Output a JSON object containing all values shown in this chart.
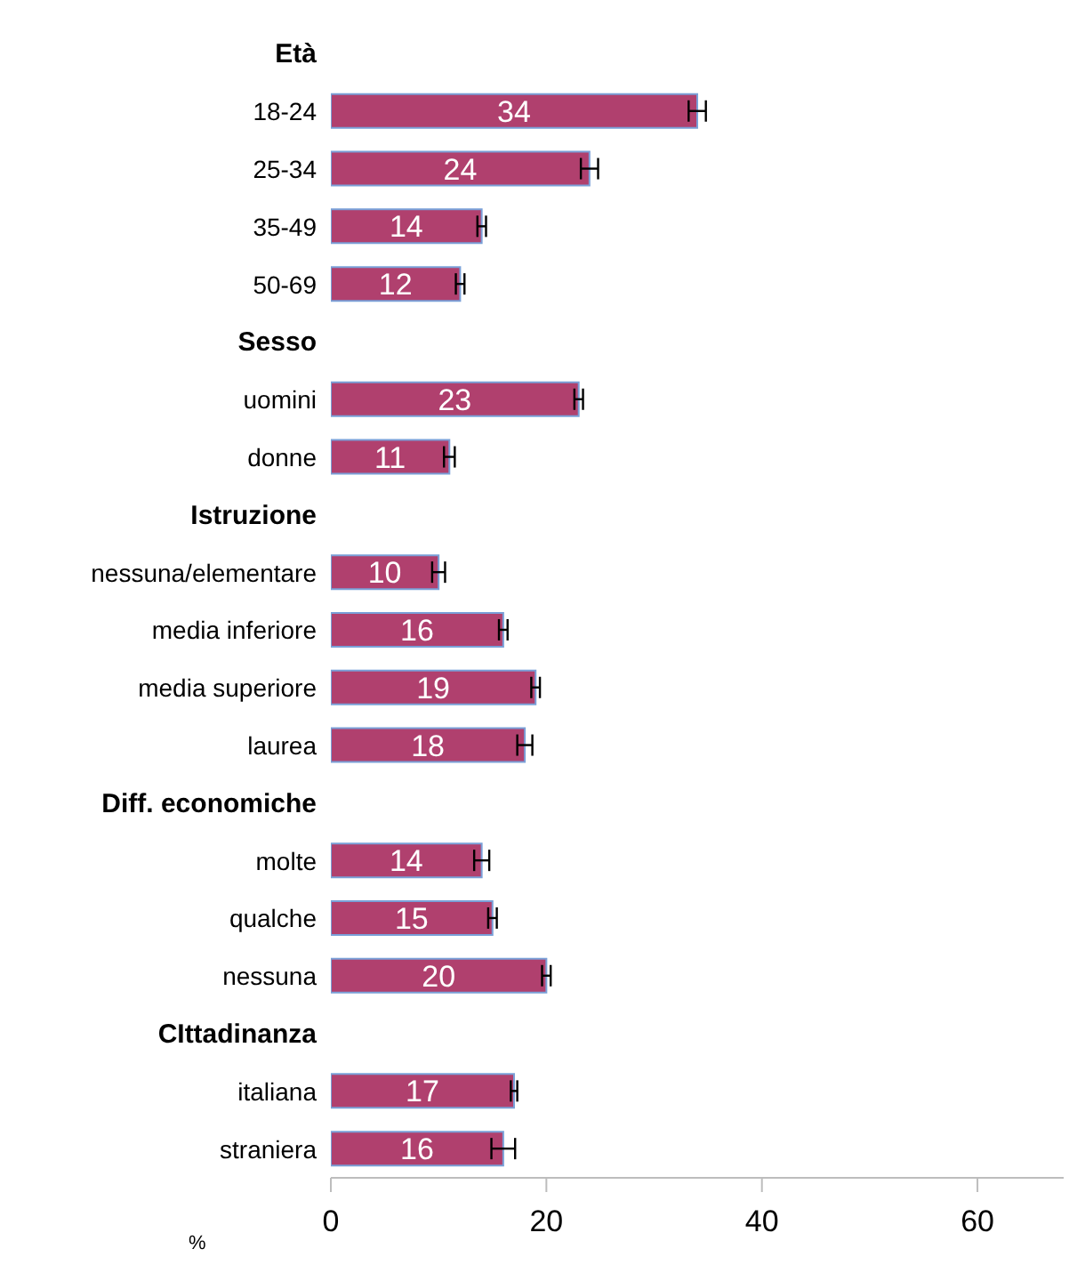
{
  "chart_data": {
    "type": "bar",
    "orientation": "horizontal",
    "xlabel": "%",
    "categories": [
      "Età",
      "18-24",
      "25-34",
      "35-49",
      "50-69",
      "Sesso",
      "uomini",
      "donne",
      "Istruzione",
      "nessuna/elementare",
      "media inferiore",
      "media superiore",
      "laurea",
      "Diff. economiche",
      "molte",
      "qualche",
      "nessuna",
      "CIttadinanza",
      "italiana",
      "straniera"
    ],
    "values": [
      null,
      34,
      24,
      14,
      12,
      null,
      23,
      11,
      null,
      10,
      16,
      19,
      18,
      null,
      14,
      15,
      20,
      null,
      17,
      16
    ],
    "errors": [
      null,
      0.8,
      0.8,
      0.4,
      0.4,
      null,
      0.4,
      0.5,
      null,
      0.6,
      0.4,
      0.4,
      0.7,
      null,
      0.7,
      0.4,
      0.4,
      null,
      0.3,
      1.1
    ],
    "color": "#b0406e",
    "data_labels": true,
    "xlim": [
      0,
      68
    ],
    "xticks": [
      0,
      20,
      40,
      60
    ]
  }
}
